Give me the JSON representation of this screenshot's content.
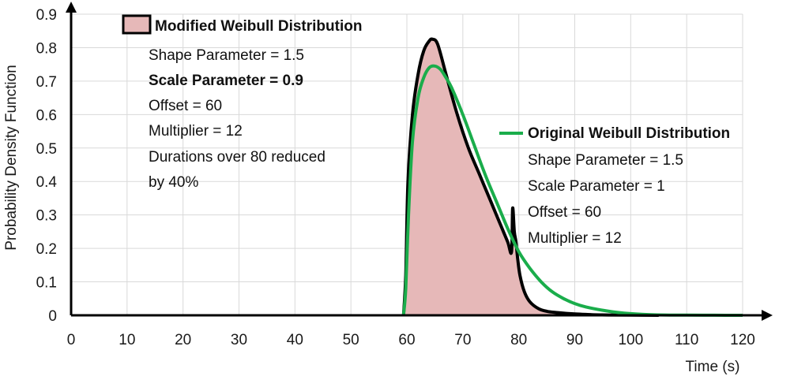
{
  "chart_data": {
    "type": "area",
    "xlabel": "Time (s)",
    "ylabel": "Probability Density Function",
    "xlim": [
      0,
      120
    ],
    "ylim": [
      0,
      0.9
    ],
    "x_ticks": [
      "0",
      "10",
      "20",
      "30",
      "40",
      "50",
      "60",
      "70",
      "80",
      "90",
      "100",
      "110",
      "120"
    ],
    "y_ticks": [
      "0",
      "0.1",
      "0.2",
      "0.3",
      "0.4",
      "0.5",
      "0.6",
      "0.7",
      "0.8",
      "0.9"
    ],
    "grid": true,
    "colors": {
      "modified_line": "#000000",
      "modified_fill": "#e6b8b8",
      "original_line": "#1aad4b"
    },
    "series": [
      {
        "name": "Modified Weibull Distribution",
        "style": "filled-area",
        "x": [
          59.4,
          59.8,
          60.2,
          61,
          62,
          63,
          64,
          64.6,
          65.5,
          67,
          69,
          71,
          73,
          75,
          76.5,
          78,
          78.7,
          78.9,
          79.2,
          79.5,
          79.8,
          80.2,
          81,
          82,
          83.5,
          85,
          87,
          90,
          93,
          96,
          100,
          105
        ],
        "y": [
          0,
          0.12,
          0.4,
          0.6,
          0.72,
          0.79,
          0.82,
          0.825,
          0.81,
          0.72,
          0.6,
          0.5,
          0.42,
          0.34,
          0.28,
          0.22,
          0.19,
          0.32,
          0.25,
          0.22,
          0.17,
          0.12,
          0.07,
          0.04,
          0.02,
          0.012,
          0.008,
          0.004,
          0.002,
          0.001,
          0.0005,
          0
        ],
        "annotations": [
          "Shape Parameter = 1.5",
          "Scale Parameter = 0.9",
          "Offset = 60",
          "Multiplier = 12",
          "Durations over 80 reduced",
          "by 40%"
        ]
      },
      {
        "name": "Original Weibull Distribution",
        "style": "line",
        "x": [
          59.4,
          59.8,
          60.3,
          61,
          62,
          63,
          64,
          65,
          66,
          67,
          68,
          70,
          72,
          74,
          76,
          78,
          80,
          82,
          84,
          86,
          88,
          90,
          92,
          95,
          98,
          102,
          106,
          110,
          115,
          120
        ],
        "y": [
          0,
          0.08,
          0.3,
          0.52,
          0.65,
          0.71,
          0.74,
          0.745,
          0.735,
          0.71,
          0.68,
          0.6,
          0.51,
          0.42,
          0.34,
          0.26,
          0.19,
          0.14,
          0.1,
          0.07,
          0.05,
          0.035,
          0.025,
          0.015,
          0.008,
          0.003,
          0.001,
          0.0005,
          0.0002,
          0
        ],
        "annotations": [
          "Shape Parameter = 1.5",
          "Scale Parameter = 1",
          "Offset = 60",
          "Multiplier = 12"
        ]
      }
    ]
  }
}
